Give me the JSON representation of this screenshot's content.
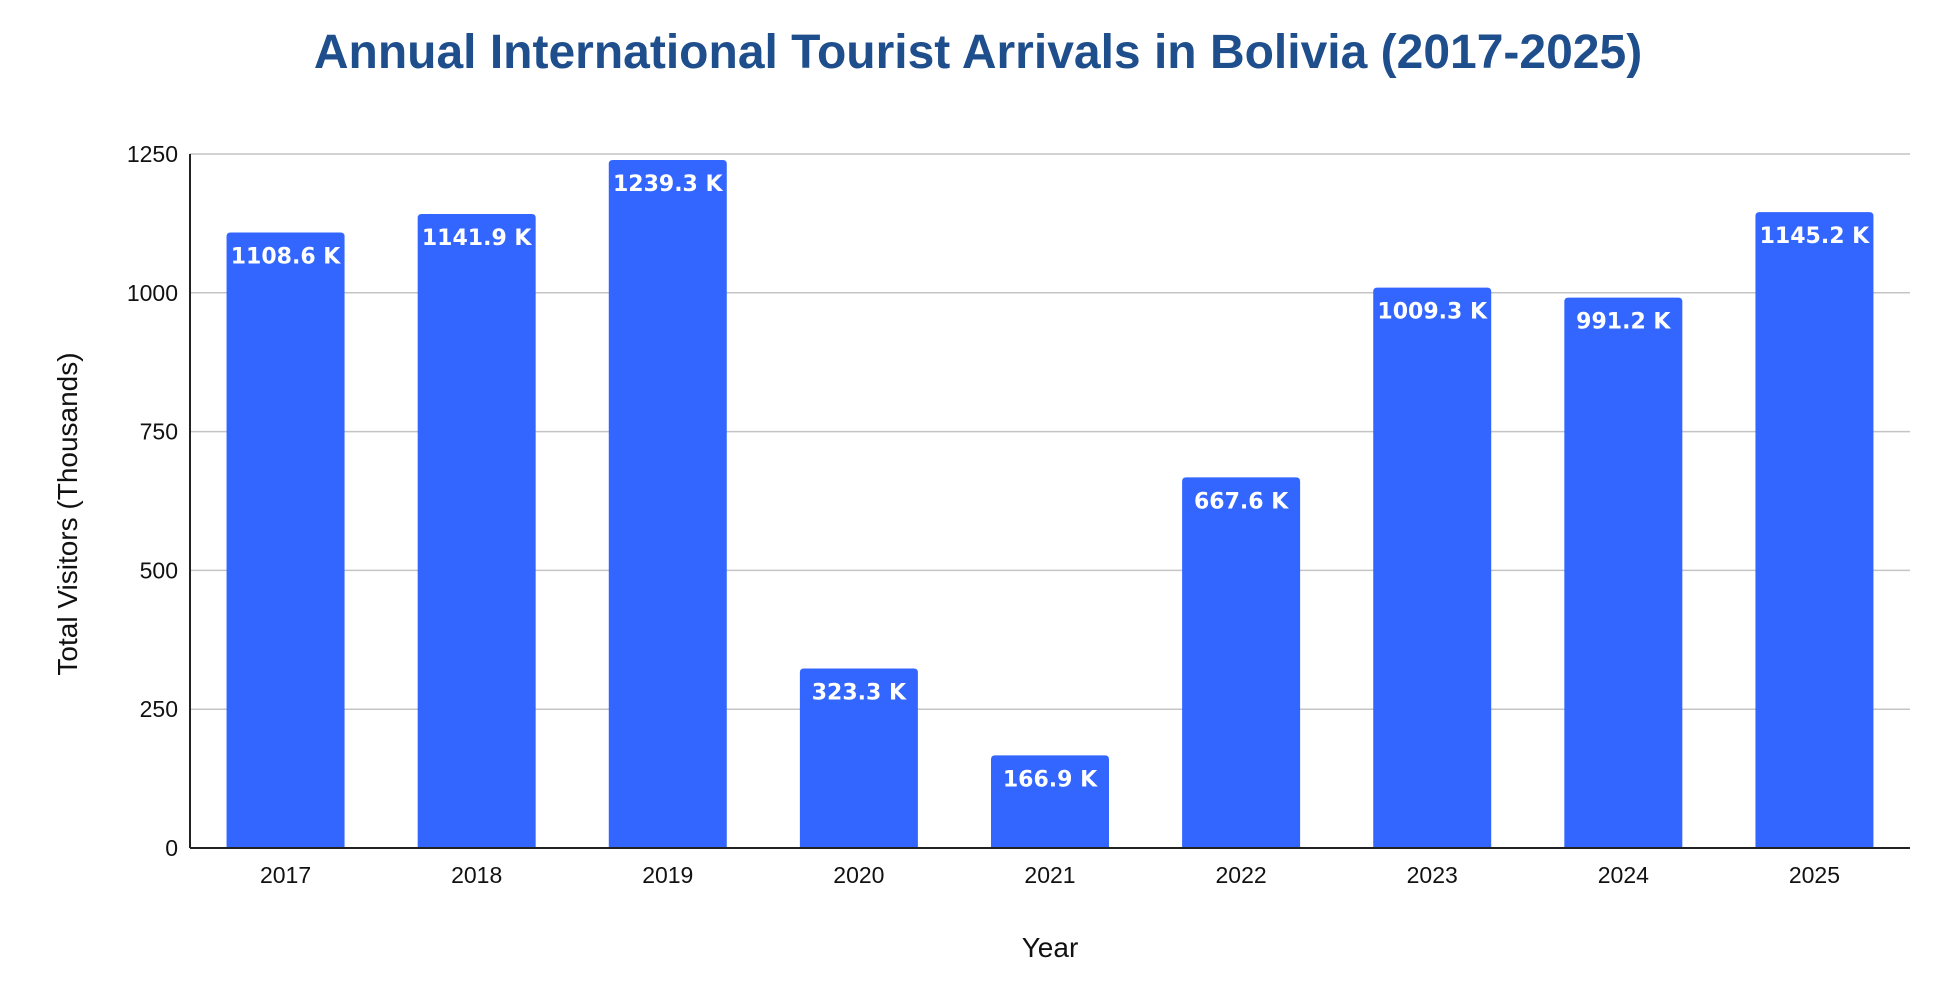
{
  "chart_data": {
    "type": "bar",
    "title": "Annual International Tourist Arrivals in Bolivia (2017-2025)",
    "xlabel": "Year",
    "ylabel": "Total Visitors (Thousands)",
    "categories": [
      "2017",
      "2018",
      "2019",
      "2020",
      "2021",
      "2022",
      "2023",
      "2024",
      "2025"
    ],
    "values": [
      1108.6,
      1141.9,
      1239.3,
      323.3,
      166.9,
      667.6,
      1009.3,
      991.2,
      1145.2
    ],
    "data_labels": [
      "1108.6 K",
      "1141.9 K",
      "1239.3 K",
      "323.3 K",
      "166.9 K",
      "667.6 K",
      "1009.3 K",
      "991.2 K",
      "1145.2 K"
    ],
    "ylim": [
      0,
      1250
    ],
    "yticks": [
      0,
      250,
      500,
      750,
      1000,
      1250
    ],
    "grid": true,
    "legend": "none",
    "bar_color": "#3366ff",
    "title_color": "#1f4e8c"
  }
}
